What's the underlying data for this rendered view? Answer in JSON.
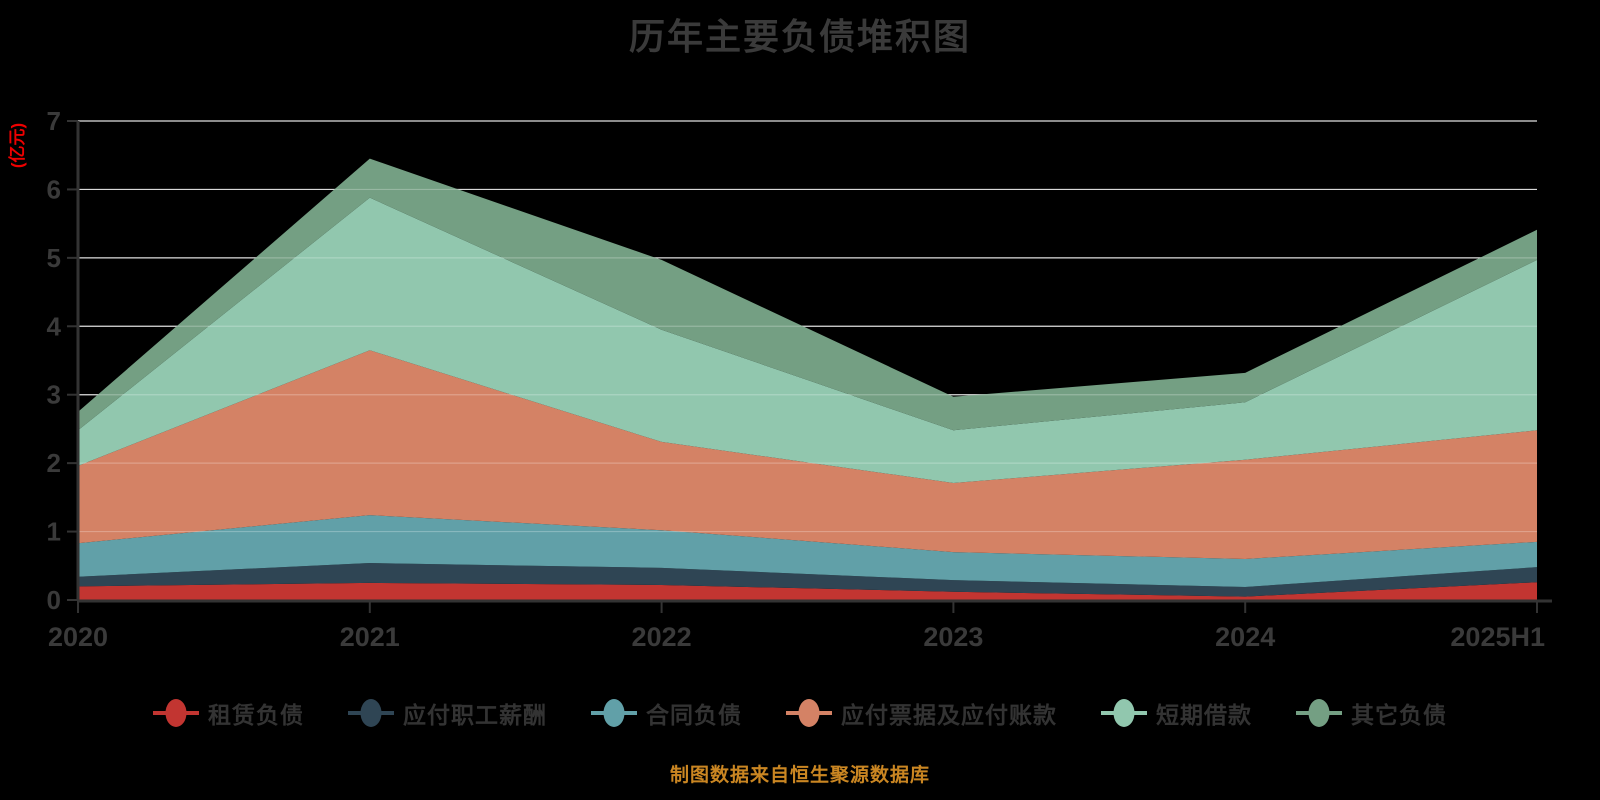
{
  "title": "历年主要负债堆积图",
  "source_note": "制图数据来自恒生聚源数据库",
  "y_axis": {
    "name": "(亿元)",
    "ticks": [
      "0",
      "1",
      "2",
      "3",
      "4",
      "5",
      "6",
      "7"
    ]
  },
  "x_axis": {
    "labels": [
      "2020",
      "2021",
      "2022",
      "2023",
      "2024",
      "2025H1"
    ]
  },
  "colors": {
    "background": "#000000",
    "title_text": "#3a3a3a",
    "axis_label": "#3a3a3a",
    "axis_line": "#333333",
    "gridline": "#cccccc",
    "gridline_overlay": "rgba(255,255,255,0.25)",
    "legend_text": "#333333",
    "source_text": "#ca8622",
    "y_axis_name": "#ee0000"
  },
  "chart_data": {
    "type": "area",
    "stacked": true,
    "title": "历年主要负债堆积图",
    "ylabel": "(亿元)",
    "xlabel": "",
    "grid": true,
    "legend_position": "bottom",
    "ylim": [
      0,
      7
    ],
    "yticks": [
      0,
      1,
      2,
      3,
      4,
      5,
      6,
      7
    ],
    "x": [
      "2020",
      "2021",
      "2022",
      "2023",
      "2024",
      "2025H1"
    ],
    "series": [
      {
        "name": "租赁负债",
        "color": "#c23531",
        "values": [
          0.2,
          0.25,
          0.22,
          0.12,
          0.05,
          0.26
        ]
      },
      {
        "name": "应付职工薪酬",
        "color": "#2f4554",
        "values": [
          0.14,
          0.29,
          0.25,
          0.17,
          0.14,
          0.22
        ]
      },
      {
        "name": "合同负债",
        "color": "#61a0a8",
        "values": [
          0.49,
          0.7,
          0.55,
          0.41,
          0.41,
          0.37
        ]
      },
      {
        "name": "应付票据及应付账款",
        "color": "#d48265",
        "values": [
          1.13,
          2.41,
          1.29,
          1.01,
          1.45,
          1.63
        ]
      },
      {
        "name": "短期借款",
        "color": "#91c7ae",
        "values": [
          0.52,
          2.23,
          1.64,
          0.77,
          0.84,
          2.49
        ]
      },
      {
        "name": "其它负债",
        "color": "#749f83",
        "values": [
          0.27,
          0.57,
          1.02,
          0.49,
          0.43,
          0.44
        ]
      }
    ],
    "stack_totals": [
      2.75,
      6.45,
      4.97,
      2.97,
      3.32,
      5.41
    ]
  }
}
